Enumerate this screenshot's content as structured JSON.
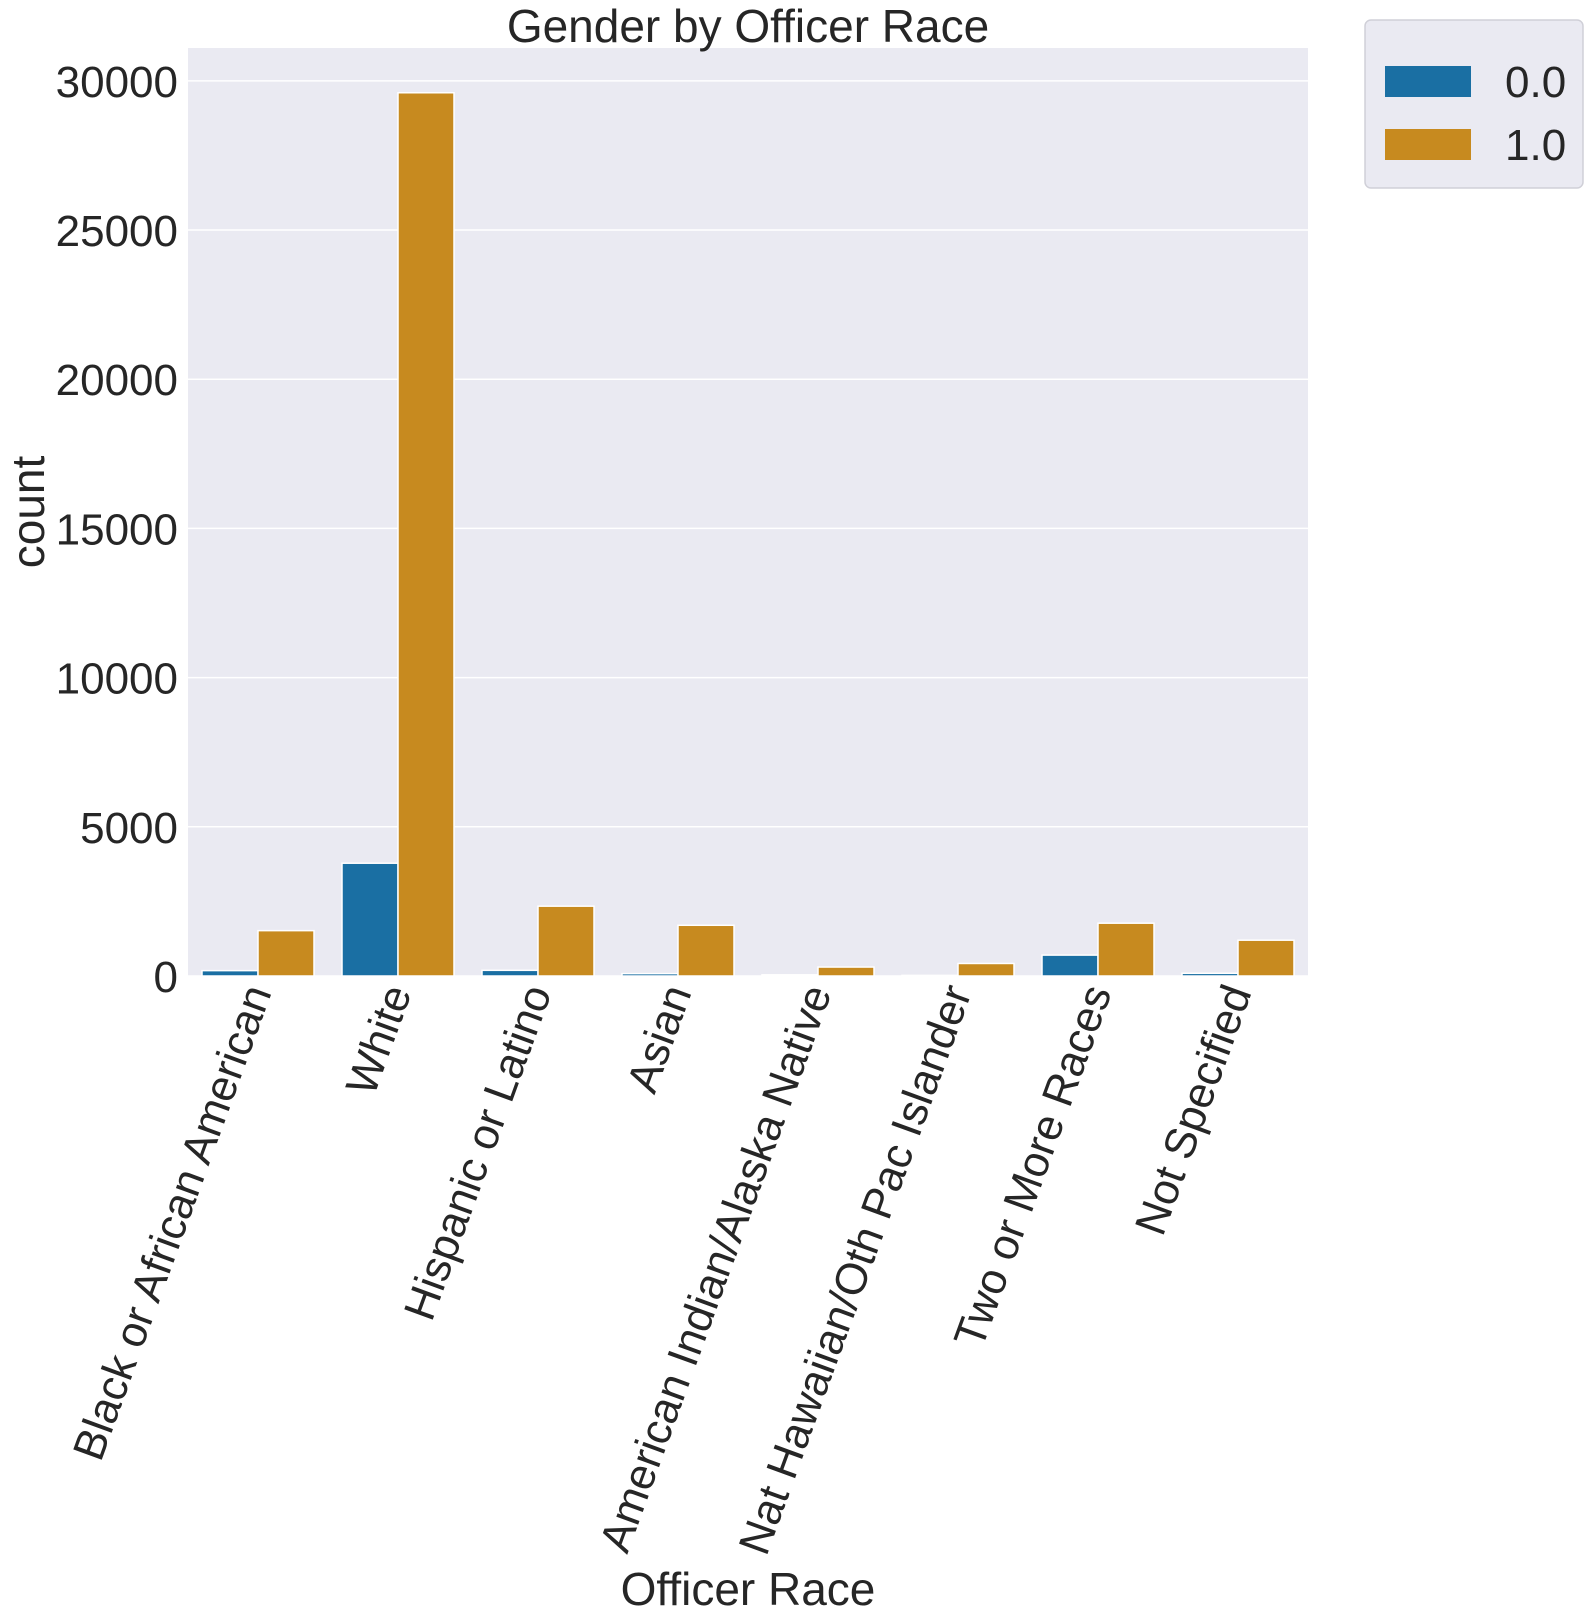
{
  "chart_data": {
    "type": "bar",
    "title": "Gender by Officer Race",
    "xlabel": "Officer Race",
    "ylabel": "count",
    "ylim": [
      0,
      31100
    ],
    "yticks": [
      0,
      5000,
      10000,
      15000,
      20000,
      25000,
      30000
    ],
    "grid": true,
    "legend_position": "outside-top-right",
    "categories": [
      "Black or African American",
      "White",
      "Hispanic or Latino",
      "Asian",
      "American Indian/Alaska Native",
      "Nat Hawaiian/Oth Pac Islander",
      "Two or More Races",
      "Not Specified"
    ],
    "series": [
      {
        "name": "0.0",
        "color": "#1a6fa3",
        "values": [
          180,
          3780,
          190,
          80,
          40,
          20,
          700,
          90
        ]
      },
      {
        "name": "1.0",
        "color": "#c78a1f",
        "values": [
          1520,
          29600,
          2340,
          1700,
          300,
          420,
          1770,
          1200
        ]
      }
    ],
    "colors": {
      "background": "#eaeaf2",
      "grid": "#ffffff",
      "text": "#262626"
    }
  }
}
